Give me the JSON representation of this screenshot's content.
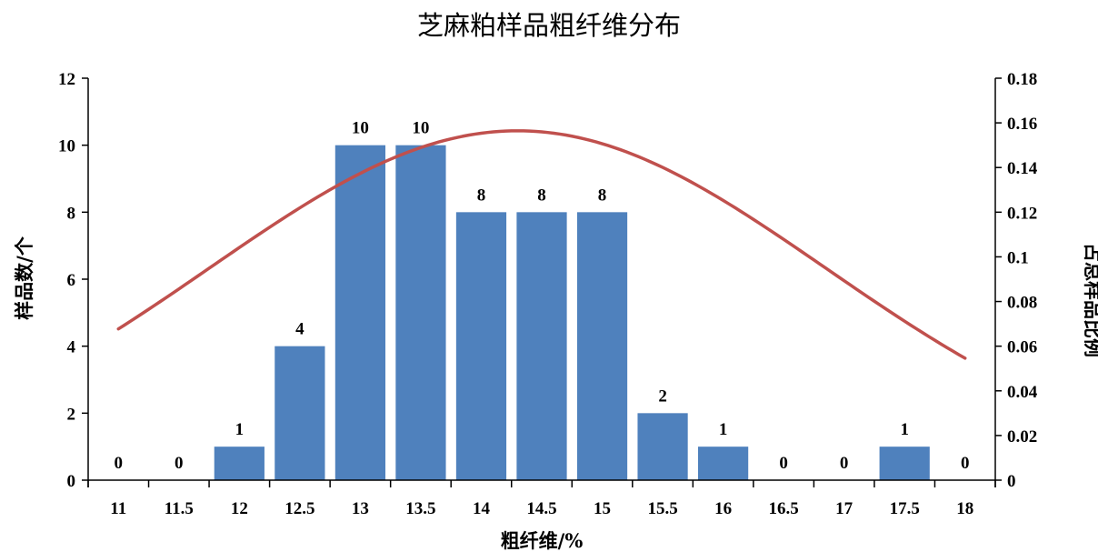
{
  "chart_data": {
    "type": "bar",
    "title": "芝麻粕样品粗纤维分布",
    "xlabel": "粗纤维/%",
    "ylabel": "样品数/个",
    "y2label": "占总样品比例",
    "categories": [
      "11",
      "11.5",
      "12",
      "12.5",
      "13",
      "13.5",
      "14",
      "14.5",
      "15",
      "15.5",
      "16",
      "16.5",
      "17",
      "17.5",
      "18"
    ],
    "series": [
      {
        "type": "bar",
        "axis": "left",
        "color": "#4f81bd",
        "values": [
          0,
          0,
          1,
          4,
          10,
          10,
          8,
          8,
          8,
          2,
          1,
          0,
          0,
          1,
          0
        ],
        "labels": [
          "0",
          "0",
          "1",
          "4",
          "10",
          "10",
          "8",
          "8",
          "8",
          "2",
          "1",
          "0",
          "0",
          "1",
          "0"
        ]
      },
      {
        "type": "line",
        "axis": "right",
        "color": "#c0504d",
        "mean": 14.3,
        "sd": 2.55,
        "x": [
          11,
          11.5,
          12,
          12.5,
          13,
          13.5,
          14,
          14.5,
          15,
          15.5,
          16,
          16.5,
          17,
          17.5,
          18
        ],
        "values": [
          0.067,
          0.0859,
          0.1052,
          0.1228,
          0.1371,
          0.1477,
          0.1548,
          0.1557,
          0.1516,
          0.1426,
          0.129,
          0.1131,
          0.0949,
          0.0762,
          0.0587
        ]
      }
    ],
    "ylim": [
      0,
      12
    ],
    "yticks": [
      "0",
      "2",
      "4",
      "6",
      "8",
      "10",
      "12"
    ],
    "y2lim": [
      0,
      0.18
    ],
    "y2ticks": [
      "0",
      "0.02",
      "0.04",
      "0.06",
      "0.08",
      "0.1",
      "0.12",
      "0.14",
      "0.16",
      "0.18"
    ],
    "grid": false,
    "legend": false
  }
}
